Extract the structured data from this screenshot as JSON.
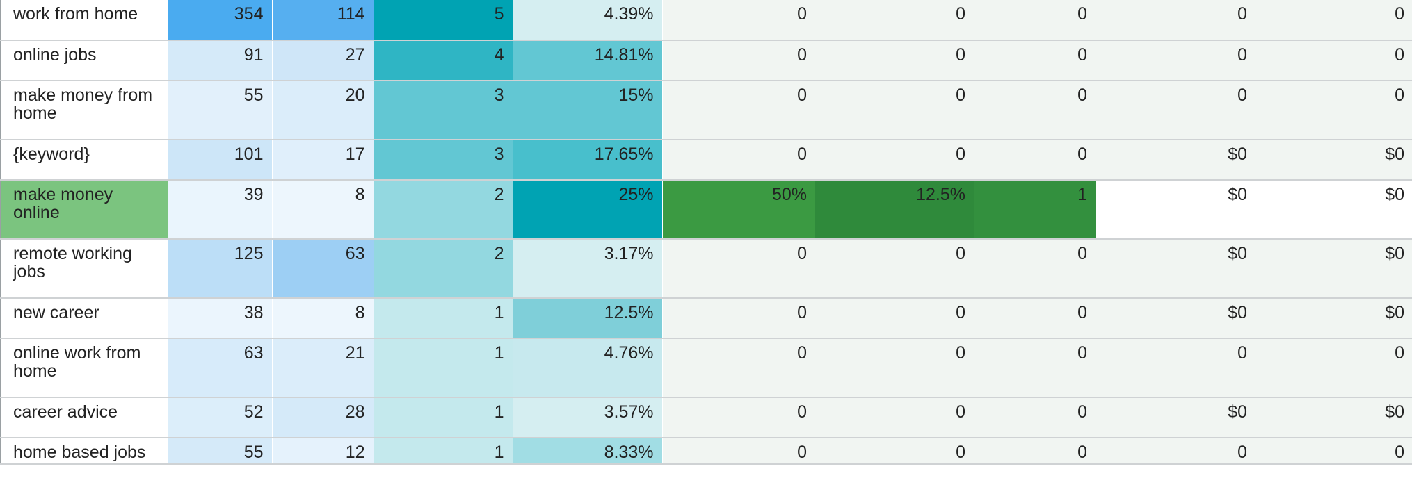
{
  "rows": [
    {
      "keyword": "work from home",
      "v1": "354",
      "v2": "114",
      "v3": "5",
      "v4": "4.39%",
      "v5": "0",
      "v6": "0",
      "v7": "0",
      "v8": "0",
      "v9": "0",
      "tall": false
    },
    {
      "keyword": "online jobs",
      "v1": "91",
      "v2": "27",
      "v3": "4",
      "v4": "14.81%",
      "v5": "0",
      "v6": "0",
      "v7": "0",
      "v8": "0",
      "v9": "0",
      "tall": false
    },
    {
      "keyword": "make money from home",
      "v1": "55",
      "v2": "20",
      "v3": "3",
      "v4": "15%",
      "v5": "0",
      "v6": "0",
      "v7": "0",
      "v8": "0",
      "v9": "0",
      "tall": true
    },
    {
      "keyword": "{keyword}",
      "v1": "101",
      "v2": "17",
      "v3": "3",
      "v4": "17.65%",
      "v5": "0",
      "v6": "0",
      "v7": "0",
      "v8": "$0",
      "v9": "$0",
      "tall": false
    },
    {
      "keyword": "make money online",
      "v1": "39",
      "v2": "8",
      "v3": "2",
      "v4": "25%",
      "v5": "50%",
      "v6": "12.5%",
      "v7": "1",
      "v8": "$0",
      "v9": "$0",
      "tall": true,
      "highlight": true
    },
    {
      "keyword": "remote working jobs",
      "v1": "125",
      "v2": "63",
      "v3": "2",
      "v4": "3.17%",
      "v5": "0",
      "v6": "0",
      "v7": "0",
      "v8": "$0",
      "v9": "$0",
      "tall": true
    },
    {
      "keyword": "new career",
      "v1": "38",
      "v2": "8",
      "v3": "1",
      "v4": "12.5%",
      "v5": "0",
      "v6": "0",
      "v7": "0",
      "v8": "$0",
      "v9": "$0",
      "tall": false
    },
    {
      "keyword": "online work from home",
      "v1": "63",
      "v2": "21",
      "v3": "1",
      "v4": "4.76%",
      "v5": "0",
      "v6": "0",
      "v7": "0",
      "v8": "0",
      "v9": "0",
      "tall": true
    },
    {
      "keyword": "career advice",
      "v1": "52",
      "v2": "28",
      "v3": "1",
      "v4": "3.57%",
      "v5": "0",
      "v6": "0",
      "v7": "0",
      "v8": "$0",
      "v9": "$0",
      "tall": false
    },
    {
      "keyword": "home based jobs",
      "v1": "55",
      "v2": "12",
      "v3": "1",
      "v4": "8.33%",
      "v5": "0",
      "v6": "0",
      "v7": "0",
      "v8": "0",
      "v9": "0",
      "tall": false,
      "cut": true
    }
  ],
  "colors": {
    "col1": [
      "#4aabf0",
      "#d5eaf9",
      "#e2f0fb",
      "#cde6f8",
      "#eaf5fd",
      "#bcdef7",
      "#ebf5fd",
      "#d7ebfa",
      "#dceefa",
      "#d5eaf9"
    ],
    "col2": [
      "#56aff0",
      "#cfe6f8",
      "#dbedfa",
      "#e0effb",
      "#edf6fd",
      "#9dcff4",
      "#edf6fd",
      "#dbedfa",
      "#d5eaf9",
      "#e5f2fc"
    ],
    "col3": [
      "#00a3b3",
      "#2fb5c4",
      "#62c7d3",
      "#62c7d3",
      "#93d8e0",
      "#93d8e0",
      "#c4e9ed",
      "#c4e9ed",
      "#c4e9ed",
      "#c4e9ed"
    ],
    "col4": [
      "#d5eef1",
      "#62c7d3",
      "#62c7d3",
      "#48bfcc",
      "#00a3b3",
      "#d5eef1",
      "#7fcfd9",
      "#c7e9ee",
      "#d5eef1",
      "#a1dde4"
    ],
    "right_bg": "#f1f5f2",
    "green_light": "#7bc47f",
    "green_mid": "#3b9a42",
    "green_dark": "#2f8a3b",
    "green_med": "#33903e"
  }
}
